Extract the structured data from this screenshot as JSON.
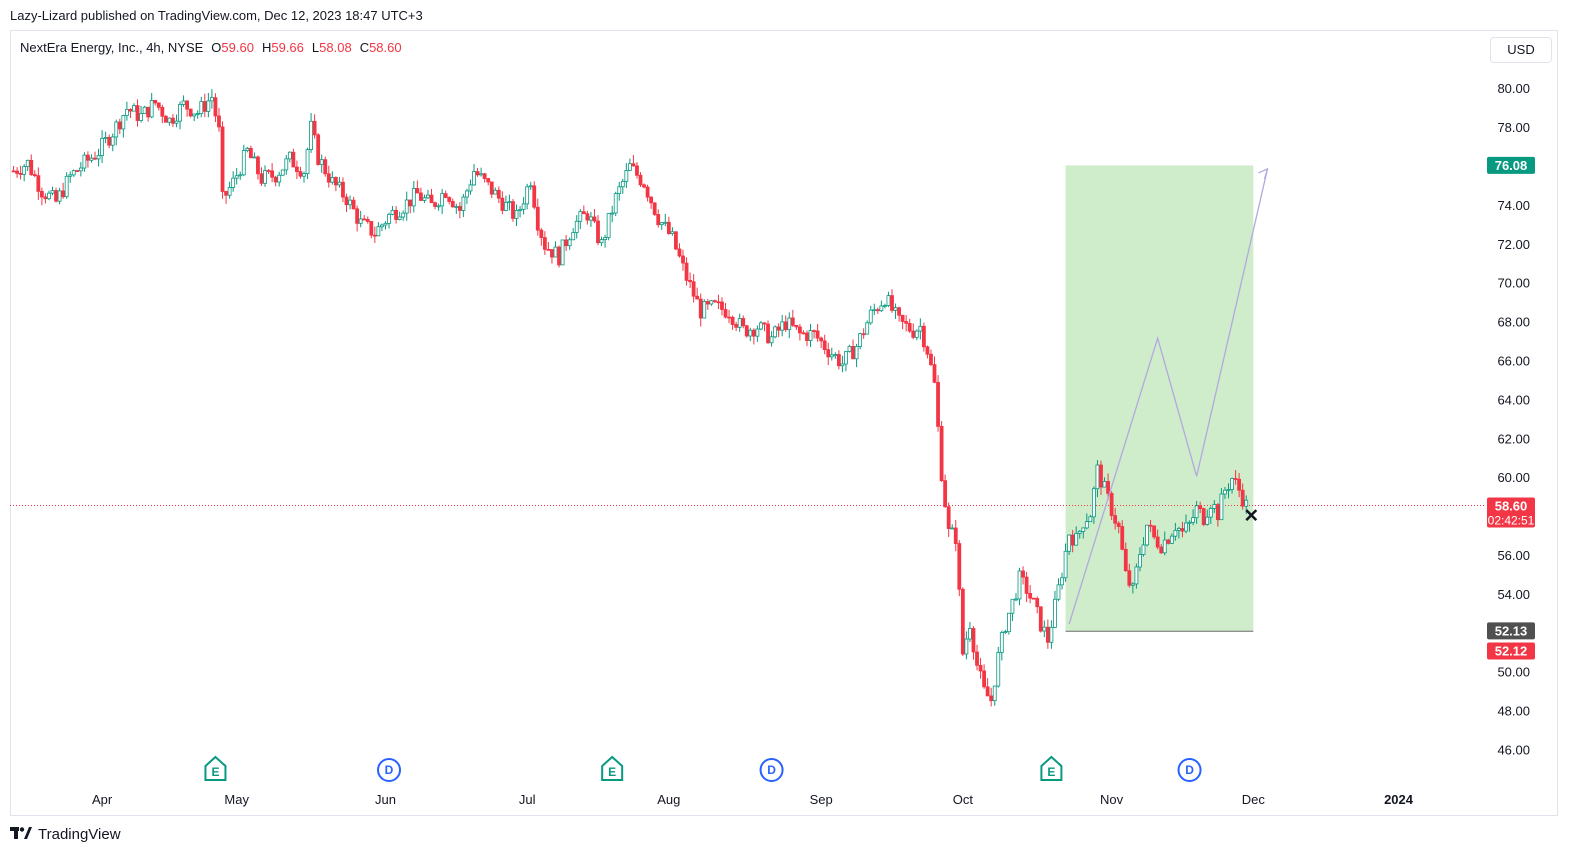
{
  "header": {
    "published_line": "Lazy-Lizard published on TradingView.com, Dec 12, 2023 18:47 UTC+3"
  },
  "legend": {
    "symbol": "NextEra Energy, Inc., 4h, NYSE",
    "open_label": "O",
    "open": "59.60",
    "high_label": "H",
    "high": "59.66",
    "low_label": "L",
    "low": "58.08",
    "close_label": "C",
    "close": "58.60"
  },
  "currency_button": "USD",
  "footer": {
    "brand": "TradingView"
  },
  "colors": {
    "up": "#089981",
    "down": "#f23645",
    "position_zone": "#cfeccb",
    "projection": "#b2a9e0",
    "last_price": "#f23645",
    "target": "#089981"
  },
  "chart_data": {
    "type": "candlestick",
    "interval": "4h",
    "ylim": [
      45.0,
      81.5
    ],
    "y_ticks": [
      "80.00",
      "78.00",
      "76.00",
      "74.00",
      "72.00",
      "70.00",
      "68.00",
      "66.00",
      "64.00",
      "62.00",
      "60.00",
      "58.00",
      "56.00",
      "54.00",
      "52.00",
      "50.00",
      "48.00",
      "46.00"
    ],
    "x_ticks": [
      {
        "label": "Apr",
        "t": 5.5
      },
      {
        "label": "May",
        "t": 24.5
      },
      {
        "label": "Jun",
        "t": 45.5
      },
      {
        "label": "Jul",
        "t": 65.5
      },
      {
        "label": "Aug",
        "t": 85.5
      },
      {
        "label": "Sep",
        "t": 107
      },
      {
        "label": "Oct",
        "t": 127
      },
      {
        "label": "Nov",
        "t": 148
      },
      {
        "label": "Dec",
        "t": 168
      },
      {
        "label": "2024",
        "t": 188.5
      }
    ],
    "t_range": [
      -7.5,
      200
    ],
    "series": [
      {
        "t": -7,
        "close": 75.8
      },
      {
        "t": -5,
        "close": 76.2
      },
      {
        "t": -3,
        "close": 74.8
      },
      {
        "t": -1,
        "close": 74.2
      },
      {
        "t": 1,
        "close": 75.5
      },
      {
        "t": 3,
        "close": 76.2
      },
      {
        "t": 5,
        "close": 76.8
      },
      {
        "t": 7,
        "close": 77.8
      },
      {
        "t": 9,
        "close": 79.0
      },
      {
        "t": 11,
        "close": 78.6
      },
      {
        "t": 13,
        "close": 79.3
      },
      {
        "t": 15,
        "close": 78.4
      },
      {
        "t": 17,
        "close": 79.2
      },
      {
        "t": 19,
        "close": 78.8
      },
      {
        "t": 21,
        "close": 79.6
      },
      {
        "t": 22,
        "close": 77.8
      },
      {
        "t": 22.5,
        "close": 74.3
      },
      {
        "t": 24,
        "close": 75.2
      },
      {
        "t": 26,
        "close": 76.8
      },
      {
        "t": 28,
        "close": 75.4
      },
      {
        "t": 30,
        "close": 75.6
      },
      {
        "t": 32,
        "close": 76.4
      },
      {
        "t": 34,
        "close": 75.8
      },
      {
        "t": 35,
        "close": 78.0
      },
      {
        "t": 36,
        "close": 76.5
      },
      {
        "t": 38,
        "close": 75.2
      },
      {
        "t": 40,
        "close": 74.4
      },
      {
        "t": 42,
        "close": 73.1
      },
      {
        "t": 44,
        "close": 72.6
      },
      {
        "t": 46,
        "close": 73.5
      },
      {
        "t": 48,
        "close": 74.0
      },
      {
        "t": 50,
        "close": 74.6
      },
      {
        "t": 52,
        "close": 74.0
      },
      {
        "t": 54,
        "close": 74.8
      },
      {
        "t": 56,
        "close": 73.8
      },
      {
        "t": 58,
        "close": 75.8
      },
      {
        "t": 60,
        "close": 75.0
      },
      {
        "t": 62,
        "close": 74.2
      },
      {
        "t": 64,
        "close": 73.4
      },
      {
        "t": 66,
        "close": 75.4
      },
      {
        "t": 67,
        "close": 73.2
      },
      {
        "t": 68,
        "close": 72.0
      },
      {
        "t": 70,
        "close": 71.4
      },
      {
        "t": 72,
        "close": 73.0
      },
      {
        "t": 74,
        "close": 73.6
      },
      {
        "t": 76,
        "close": 72.0
      },
      {
        "t": 78,
        "close": 74.4
      },
      {
        "t": 80,
        "close": 76.0
      },
      {
        "t": 82,
        "close": 75.2
      },
      {
        "t": 84,
        "close": 73.4
      },
      {
        "t": 86,
        "close": 72.3
      },
      {
        "t": 88,
        "close": 70.3
      },
      {
        "t": 90,
        "close": 68.6
      },
      {
        "t": 92,
        "close": 68.8
      },
      {
        "t": 94,
        "close": 68.6
      },
      {
        "t": 96,
        "close": 67.6
      },
      {
        "t": 98,
        "close": 67.8
      },
      {
        "t": 100,
        "close": 67.2
      },
      {
        "t": 102,
        "close": 68.0
      },
      {
        "t": 104,
        "close": 67.4
      },
      {
        "t": 106,
        "close": 67.4
      },
      {
        "t": 108,
        "close": 66.6
      },
      {
        "t": 110,
        "close": 65.9
      },
      {
        "t": 112,
        "close": 66.8
      },
      {
        "t": 114,
        "close": 68.4
      },
      {
        "t": 116,
        "close": 69.3
      },
      {
        "t": 118,
        "close": 68.0
      },
      {
        "t": 120,
        "close": 67.6
      },
      {
        "t": 121,
        "close": 67.8
      },
      {
        "t": 122,
        "close": 66.6
      },
      {
        "t": 123,
        "close": 64.8
      },
      {
        "t": 124,
        "close": 60.3
      },
      {
        "t": 125,
        "close": 57.2
      },
      {
        "t": 126,
        "close": 57.0
      },
      {
        "t": 127,
        "close": 51.0
      },
      {
        "t": 128,
        "close": 52.6
      },
      {
        "t": 129,
        "close": 50.4
      },
      {
        "t": 130,
        "close": 49.0
      },
      {
        "t": 131,
        "close": 48.6
      },
      {
        "t": 132,
        "close": 50.8
      },
      {
        "t": 133,
        "close": 52.5
      },
      {
        "t": 134,
        "close": 53.6
      },
      {
        "t": 135,
        "close": 54.8
      },
      {
        "t": 136,
        "close": 54.3
      },
      {
        "t": 137,
        "close": 53.5
      },
      {
        "t": 138,
        "close": 52.5
      },
      {
        "t": 139,
        "close": 51.7
      },
      {
        "t": 140,
        "close": 53.4
      },
      {
        "t": 141,
        "close": 55.2
      },
      {
        "t": 142,
        "close": 57.2
      },
      {
        "t": 143,
        "close": 56.8
      },
      {
        "t": 144,
        "close": 57.8
      },
      {
        "t": 145,
        "close": 58.2
      },
      {
        "t": 146,
        "close": 60.4
      },
      {
        "t": 147,
        "close": 59.4
      },
      {
        "t": 148,
        "close": 58.4
      },
      {
        "t": 149,
        "close": 57.4
      },
      {
        "t": 150,
        "close": 55.0
      },
      {
        "t": 151,
        "close": 54.2
      },
      {
        "t": 152,
        "close": 56.2
      },
      {
        "t": 153,
        "close": 57.6
      },
      {
        "t": 154,
        "close": 56.9
      },
      {
        "t": 155,
        "close": 56.6
      },
      {
        "t": 156,
        "close": 57.0
      },
      {
        "t": 157,
        "close": 57.6
      },
      {
        "t": 158,
        "close": 57.2
      },
      {
        "t": 159,
        "close": 57.6
      },
      {
        "t": 160,
        "close": 58.4
      },
      {
        "t": 161,
        "close": 58.0
      },
      {
        "t": 162,
        "close": 58.8
      },
      {
        "t": 163,
        "close": 58.2
      },
      {
        "t": 164,
        "close": 59.4
      },
      {
        "t": 165,
        "close": 60.0
      },
      {
        "t": 166,
        "close": 59.4
      },
      {
        "t": 167,
        "close": 58.6
      }
    ],
    "position": {
      "type": "long",
      "start_t": 141.5,
      "end_t": 168,
      "entry": 52.13,
      "target": 76.08,
      "stop": 52.12,
      "entry_label": "52.13",
      "target_label": "76.08",
      "stop_label": "52.12"
    },
    "projection_path": [
      {
        "t": 142,
        "price": 52.5
      },
      {
        "t": 154.5,
        "price": 67.2
      },
      {
        "t": 160,
        "price": 60.1
      },
      {
        "t": 170,
        "price": 75.9
      }
    ],
    "last_price": {
      "value": 58.6,
      "label": "58.60",
      "countdown": "02:42:51"
    },
    "events": [
      {
        "t": 21.5,
        "type": "E"
      },
      {
        "t": 46,
        "type": "D"
      },
      {
        "t": 77.5,
        "type": "E"
      },
      {
        "t": 100,
        "type": "D"
      },
      {
        "t": 139.5,
        "type": "E"
      },
      {
        "t": 159,
        "type": "D"
      }
    ]
  }
}
